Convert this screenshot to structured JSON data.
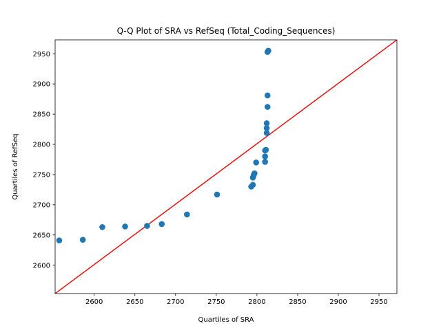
{
  "chart_data": {
    "type": "scatter",
    "title": "Q-Q Plot of SRA vs RefSeq (Total_Coding_Sequences)",
    "xlabel": "Quartiles of SRA",
    "ylabel": "Quartiles of RefSeq",
    "xlim": [
      2552,
      2972
    ],
    "ylim": [
      2553,
      2973
    ],
    "x_ticks": [
      2600,
      2650,
      2700,
      2750,
      2800,
      2850,
      2900,
      2950
    ],
    "y_ticks": [
      2600,
      2650,
      2700,
      2750,
      2800,
      2850,
      2900,
      2950
    ],
    "grid": false,
    "point_color": "#1f77b4",
    "reference_line": {
      "from": [
        2552,
        2553
      ],
      "to": [
        2972,
        2973
      ],
      "color": "#e8110c"
    },
    "points": [
      {
        "x": 2557,
        "y": 2641
      },
      {
        "x": 2586,
        "y": 2642
      },
      {
        "x": 2610,
        "y": 2663
      },
      {
        "x": 2638,
        "y": 2664
      },
      {
        "x": 2665,
        "y": 2665
      },
      {
        "x": 2683,
        "y": 2668
      },
      {
        "x": 2714,
        "y": 2684
      },
      {
        "x": 2751,
        "y": 2717
      },
      {
        "x": 2793,
        "y": 2730
      },
      {
        "x": 2795,
        "y": 2733
      },
      {
        "x": 2795,
        "y": 2745
      },
      {
        "x": 2796,
        "y": 2749
      },
      {
        "x": 2797,
        "y": 2752
      },
      {
        "x": 2799,
        "y": 2770
      },
      {
        "x": 2810,
        "y": 2771
      },
      {
        "x": 2810,
        "y": 2780
      },
      {
        "x": 2810,
        "y": 2790
      },
      {
        "x": 2811,
        "y": 2791
      },
      {
        "x": 2812,
        "y": 2819
      },
      {
        "x": 2812,
        "y": 2827
      },
      {
        "x": 2812,
        "y": 2835
      },
      {
        "x": 2813,
        "y": 2862
      },
      {
        "x": 2813,
        "y": 2881
      },
      {
        "x": 2813,
        "y": 2953
      },
      {
        "x": 2814,
        "y": 2955
      }
    ]
  }
}
